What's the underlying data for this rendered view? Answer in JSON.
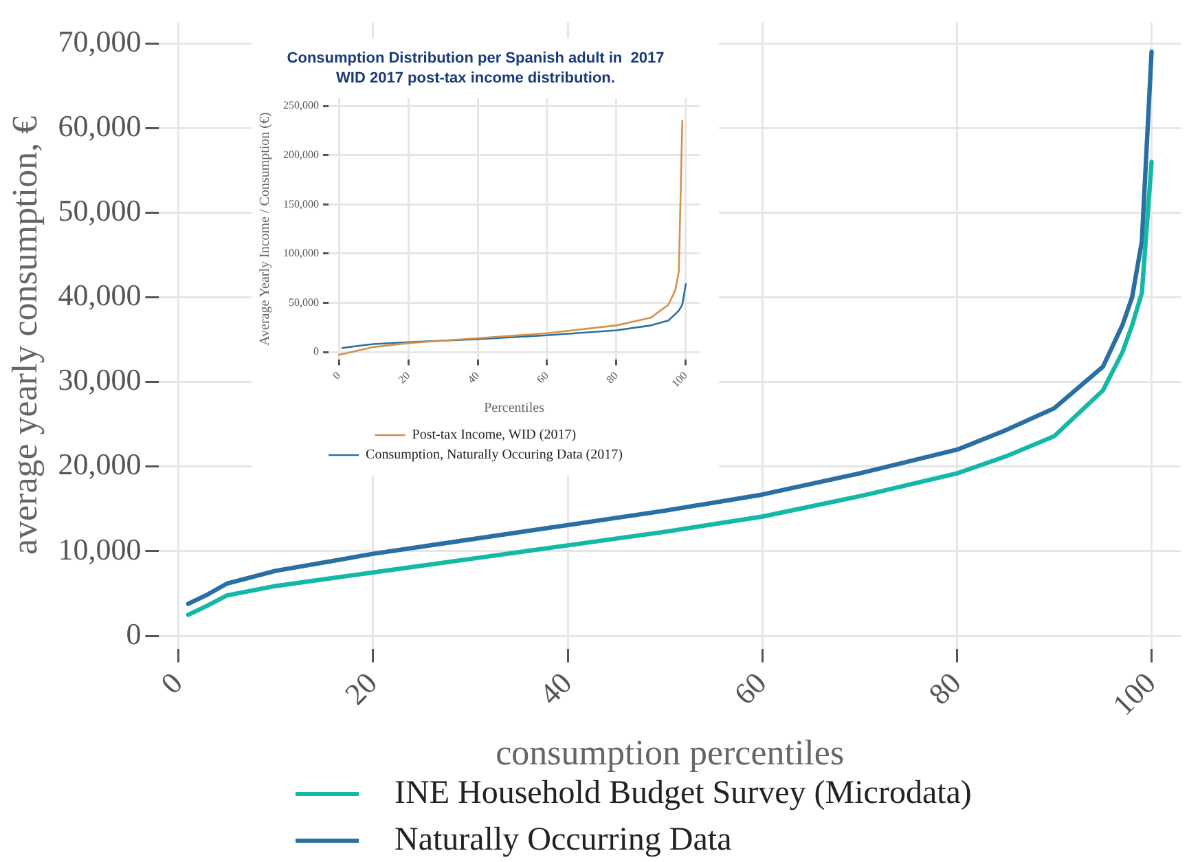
{
  "chart_data": [
    {
      "type": "line",
      "xlabel": "consumption percentiles",
      "ylabel": "average yearly consumption, €",
      "xlim": [
        -2,
        103
      ],
      "ylim": [
        -1500,
        72500
      ],
      "xticks": [
        0,
        20,
        40,
        60,
        80,
        100
      ],
      "yticks": [
        0,
        {
          "value": 10000,
          "label": "10,000"
        },
        {
          "value": 20000,
          "label": "20,000"
        },
        {
          "value": 30000,
          "label": "30,000"
        },
        {
          "value": 40000,
          "label": "40,000"
        },
        {
          "value": 50000,
          "label": "50,000"
        },
        {
          "value": 60000,
          "label": "60,000"
        },
        {
          "value": 70000,
          "label": "70,000"
        }
      ],
      "grid": true,
      "legend": "bottom",
      "marker": "none",
      "line_style": "solid",
      "x": [
        1,
        3,
        5,
        10,
        20,
        30,
        40,
        50,
        60,
        70,
        80,
        85,
        90,
        95,
        97,
        98,
        99,
        100
      ],
      "series": [
        {
          "name": "INE Household Budget Survey (Microdata)",
          "color": "#14b8a6",
          "values": [
            2500,
            3600,
            4800,
            5900,
            7500,
            9100,
            10700,
            12300,
            14100,
            16500,
            19200,
            21200,
            23600,
            29000,
            33500,
            36700,
            40500,
            56000
          ]
        },
        {
          "name": "Naturally Occurring Data",
          "color": "#2a6fa3",
          "values": [
            3800,
            4900,
            6200,
            7700,
            9700,
            11400,
            13100,
            14800,
            16700,
            19200,
            22000,
            24300,
            26900,
            31800,
            36700,
            40000,
            46600,
            69000
          ]
        }
      ]
    },
    {
      "type": "line",
      "title": "Consumption Distribution per Spanish adult in  2017",
      "subtitle": "WID 2017 post-tax income distribution.",
      "xlabel": "Percentiles",
      "ylabel": "Average Yearly Income / Consumption (€)",
      "xlim": [
        -3,
        104
      ],
      "ylim": [
        -8000,
        258000
      ],
      "xticks": [
        0,
        20,
        40,
        60,
        80,
        100
      ],
      "yticks": [
        0,
        {
          "value": 50000,
          "label": "50,000"
        },
        {
          "value": 100000,
          "label": "100,000"
        },
        {
          "value": 150000,
          "label": "150,000"
        },
        {
          "value": 200000,
          "label": "200,000"
        },
        {
          "value": 250000,
          "label": "250,000"
        }
      ],
      "grid": true,
      "legend": "bottom",
      "marker": "none",
      "line_style": "solid",
      "series": [
        {
          "name": "Post-tax Income, WID (2017)",
          "color": "#d4914a",
          "x": [
            0,
            5,
            10,
            20,
            40,
            60,
            80,
            90,
            95,
            97,
            98,
            99
          ],
          "values": [
            -3000,
            1000,
            5000,
            9000,
            14000,
            19000,
            27000,
            35000,
            48000,
            63000,
            82000,
            235000
          ]
        },
        {
          "name": "Consumption, Naturally Occuring Data (2017)",
          "color": "#2a6fa3",
          "x": [
            1,
            5,
            10,
            20,
            40,
            60,
            80,
            90,
            95,
            98,
            99,
            100
          ],
          "values": [
            4000,
            6000,
            8000,
            10000,
            13000,
            17000,
            22000,
            27000,
            32000,
            42000,
            48000,
            69000
          ]
        }
      ]
    }
  ]
}
